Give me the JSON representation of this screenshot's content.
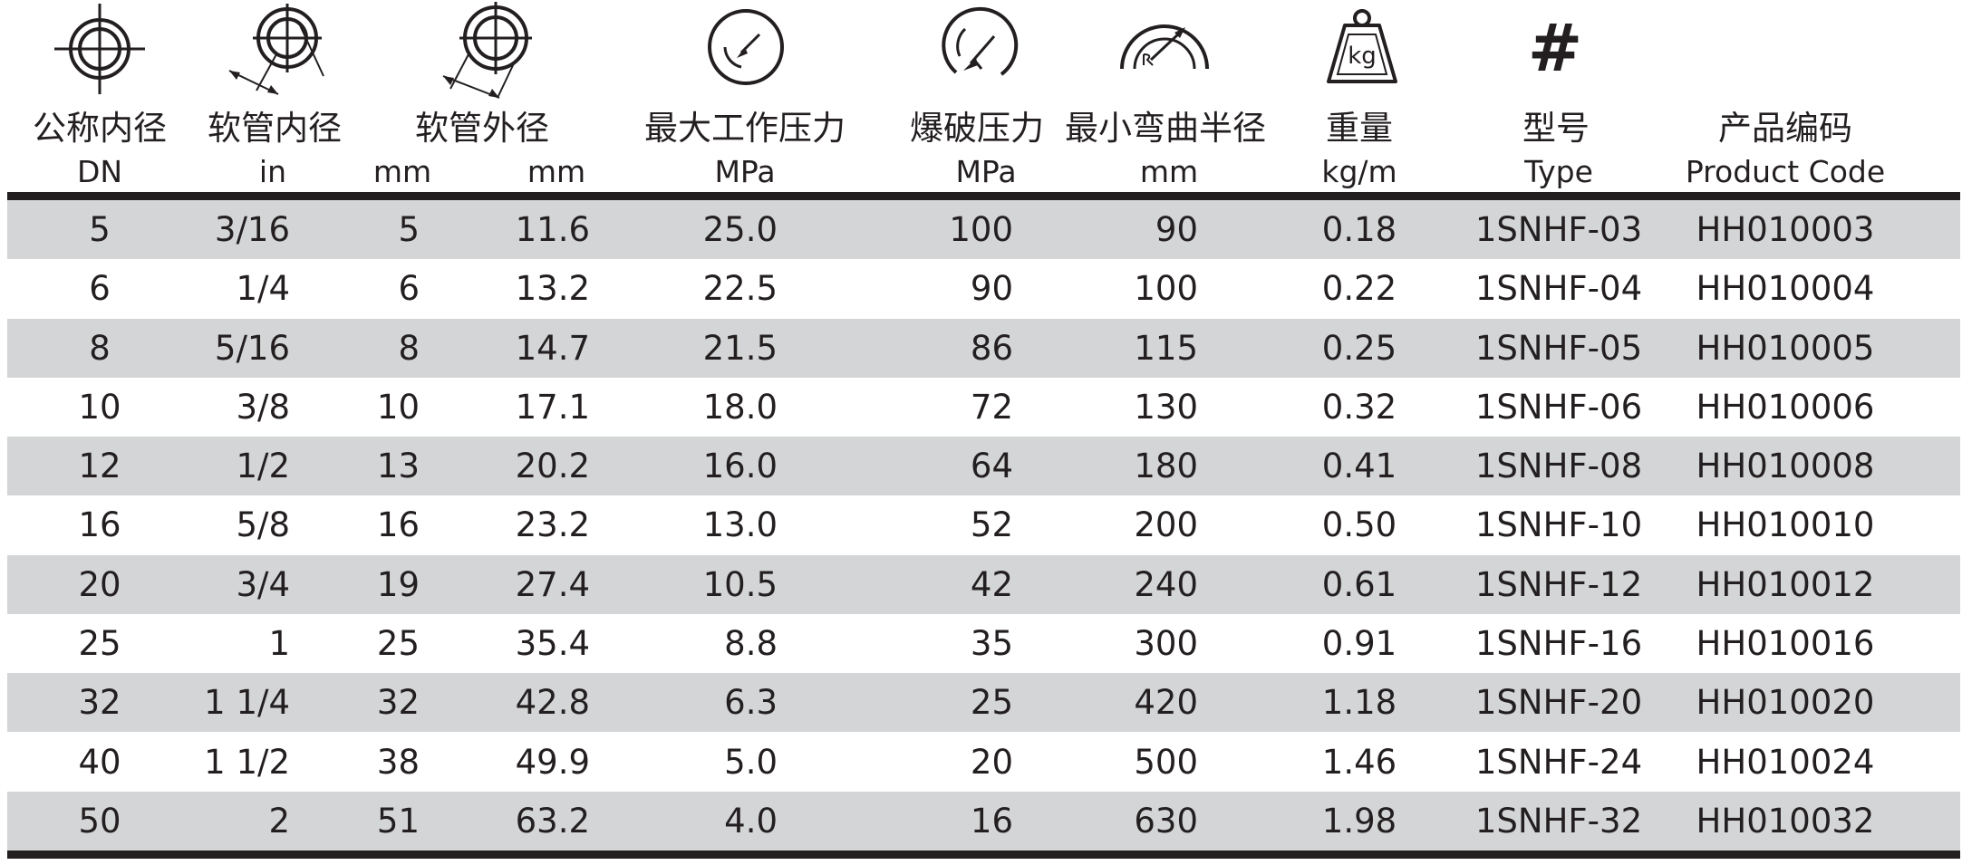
{
  "header": {
    "columns": [
      {
        "key": "dn",
        "label": "公称内径",
        "unit": "DN",
        "icon": "crosshair-circle-icon"
      },
      {
        "key": "in",
        "label": "软管内径",
        "unit": "in",
        "icon": "inner-diameter-icon"
      },
      {
        "key": "od",
        "label": "软管外径",
        "units": [
          "mm",
          "mm"
        ],
        "icon": "outer-diameter-icon"
      },
      {
        "key": "wp",
        "label": "最大工作压力",
        "unit": "MPa",
        "icon": "pressure-gauge-icon"
      },
      {
        "key": "bp",
        "label": "爆破压力",
        "unit": "MPa",
        "icon": "burst-gauge-icon"
      },
      {
        "key": "br",
        "label": "最小弯曲半径",
        "unit": "mm",
        "icon": "bend-radius-icon"
      },
      {
        "key": "wt",
        "label": "重量",
        "unit": "kg/m",
        "icon": "weight-kg-icon",
        "icon_text": "kg"
      },
      {
        "key": "type",
        "label": "型号",
        "unit": "Type",
        "icon": "hash-icon",
        "icon_text": "#"
      },
      {
        "key": "code",
        "label": "产品编码",
        "unit": "Product Code"
      }
    ]
  },
  "rows": [
    {
      "dn": "5",
      "in": "3/16",
      "id_mm": "5",
      "od_mm": "11.6",
      "wp": "25.0",
      "bp": "100",
      "br": "90",
      "wt": "0.18",
      "type": "1SNHF-03",
      "code": "HH010003"
    },
    {
      "dn": "6",
      "in": "1/4",
      "id_mm": "6",
      "od_mm": "13.2",
      "wp": "22.5",
      "bp": "90",
      "br": "100",
      "wt": "0.22",
      "type": "1SNHF-04",
      "code": "HH010004"
    },
    {
      "dn": "8",
      "in": "5/16",
      "id_mm": "8",
      "od_mm": "14.7",
      "wp": "21.5",
      "bp": "86",
      "br": "115",
      "wt": "0.25",
      "type": "1SNHF-05",
      "code": "HH010005"
    },
    {
      "dn": "10",
      "in": "3/8",
      "id_mm": "10",
      "od_mm": "17.1",
      "wp": "18.0",
      "bp": "72",
      "br": "130",
      "wt": "0.32",
      "type": "1SNHF-06",
      "code": "HH010006"
    },
    {
      "dn": "12",
      "in": "1/2",
      "id_mm": "13",
      "od_mm": "20.2",
      "wp": "16.0",
      "bp": "64",
      "br": "180",
      "wt": "0.41",
      "type": "1SNHF-08",
      "code": "HH010008"
    },
    {
      "dn": "16",
      "in": "5/8",
      "id_mm": "16",
      "od_mm": "23.2",
      "wp": "13.0",
      "bp": "52",
      "br": "200",
      "wt": "0.50",
      "type": "1SNHF-10",
      "code": "HH010010"
    },
    {
      "dn": "20",
      "in": "3/4",
      "id_mm": "19",
      "od_mm": "27.4",
      "wp": "10.5",
      "bp": "42",
      "br": "240",
      "wt": "0.61",
      "type": "1SNHF-12",
      "code": "HH010012"
    },
    {
      "dn": "25",
      "in": "1",
      "id_mm": "25",
      "od_mm": "35.4",
      "wp": "8.8",
      "bp": "35",
      "br": "300",
      "wt": "0.91",
      "type": "1SNHF-16",
      "code": "HH010016"
    },
    {
      "dn": "32",
      "in": "1 1/4",
      "id_mm": "32",
      "od_mm": "42.8",
      "wp": "6.3",
      "bp": "25",
      "br": "420",
      "wt": "1.18",
      "type": "1SNHF-20",
      "code": "HH010020"
    },
    {
      "dn": "40",
      "in": "1 1/2",
      "id_mm": "38",
      "od_mm": "49.9",
      "wp": "5.0",
      "bp": "20",
      "br": "500",
      "wt": "1.46",
      "type": "1SNHF-24",
      "code": "HH010024"
    },
    {
      "dn": "50",
      "in": "2",
      "id_mm": "51",
      "od_mm": "63.2",
      "wp": "4.0",
      "bp": "16",
      "br": "630",
      "wt": "1.98",
      "type": "1SNHF-32",
      "code": "HH010032"
    }
  ]
}
